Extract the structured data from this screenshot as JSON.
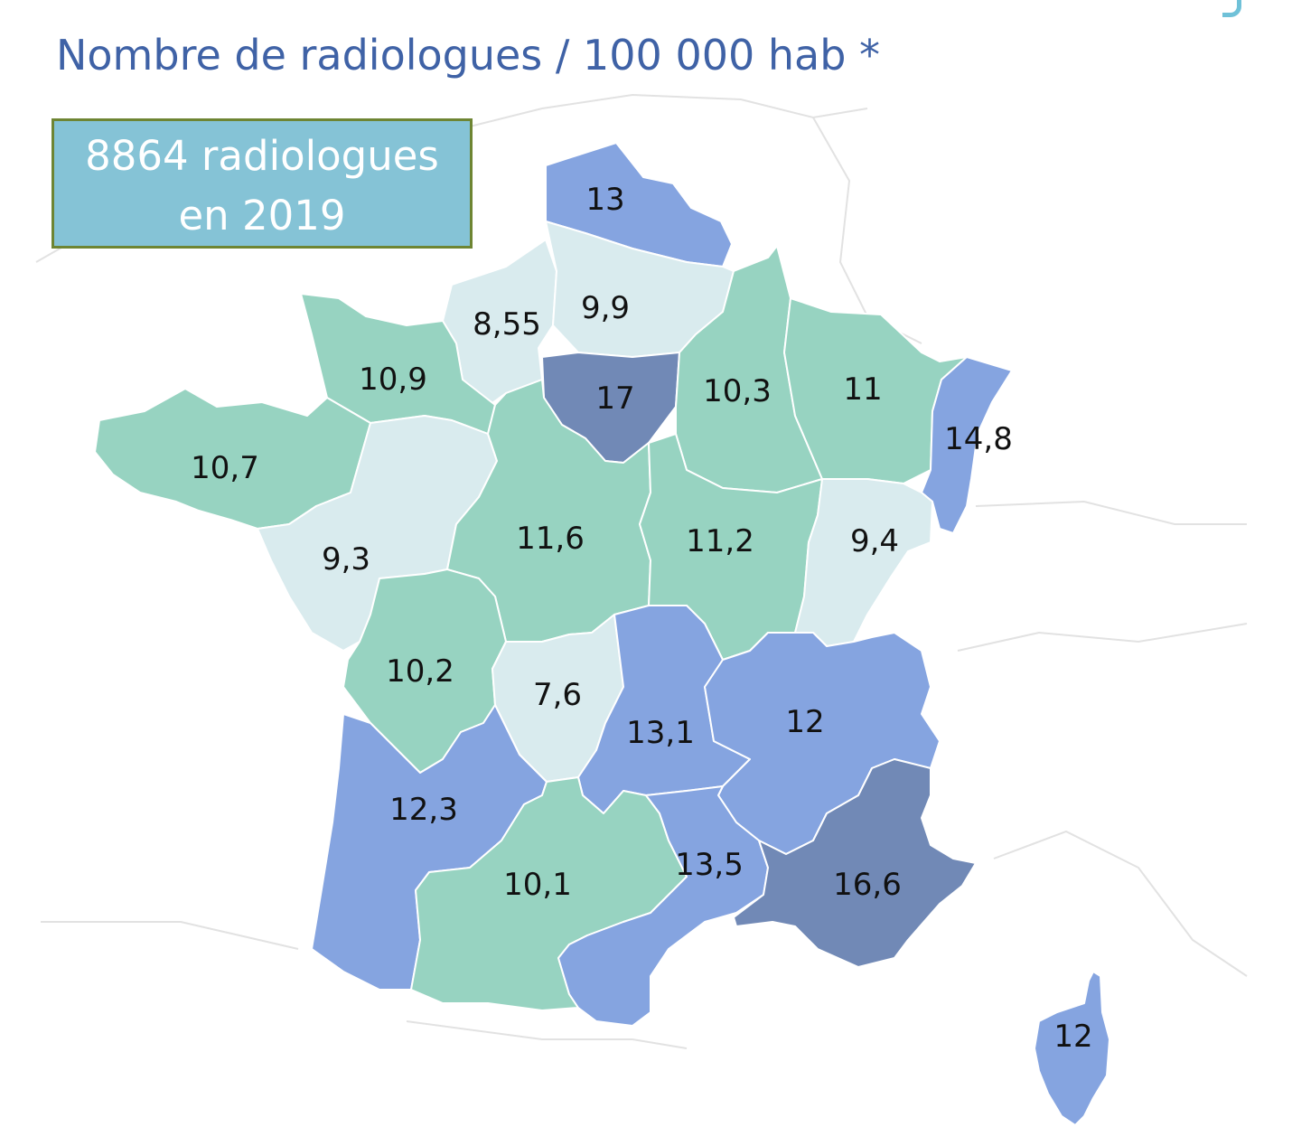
{
  "title": "Nombre de radiologues / 100 000 hab *",
  "infobox": {
    "line1": "8864 radiologues",
    "line2": "en 2019"
  },
  "legend_colors": {
    "very_low": "#d9ebee",
    "medium": "#97d3c1",
    "high": "#85a4e0",
    "very_high": "#7189b6"
  },
  "regions": [
    {
      "id": "hauts-nord",
      "value": "13",
      "class": "high"
    },
    {
      "id": "haute-normandie",
      "value": "8,55",
      "class": "very_low"
    },
    {
      "id": "picardie",
      "value": "9,9",
      "class": "very_low"
    },
    {
      "id": "basse-normandie",
      "value": "10,9",
      "class": "medium"
    },
    {
      "id": "ile-de-france",
      "value": "17",
      "class": "very_high"
    },
    {
      "id": "champagne-ardenne",
      "value": "10,3",
      "class": "medium"
    },
    {
      "id": "lorraine",
      "value": "11",
      "class": "medium"
    },
    {
      "id": "alsace",
      "value": "14,8",
      "class": "high"
    },
    {
      "id": "bretagne",
      "value": "10,7",
      "class": "medium"
    },
    {
      "id": "pays-de-la-loire",
      "value": "9,3",
      "class": "very_low"
    },
    {
      "id": "centre",
      "value": "11,6",
      "class": "medium"
    },
    {
      "id": "bourgogne",
      "value": "11,2",
      "class": "medium"
    },
    {
      "id": "franche-comte",
      "value": "9,4",
      "class": "very_low"
    },
    {
      "id": "poitou-charentes",
      "value": "10,2",
      "class": "medium"
    },
    {
      "id": "limousin",
      "value": "7,6",
      "class": "very_low"
    },
    {
      "id": "auvergne",
      "value": "13,1",
      "class": "high"
    },
    {
      "id": "rhone-alpes",
      "value": "12",
      "class": "high"
    },
    {
      "id": "aquitaine",
      "value": "12,3",
      "class": "high"
    },
    {
      "id": "midi-pyrenees",
      "value": "10,1",
      "class": "medium"
    },
    {
      "id": "languedoc-roussillon",
      "value": "13,5",
      "class": "high"
    },
    {
      "id": "paca",
      "value": "16,6",
      "class": "very_high"
    },
    {
      "id": "corse",
      "value": "12",
      "class": "high"
    }
  ]
}
